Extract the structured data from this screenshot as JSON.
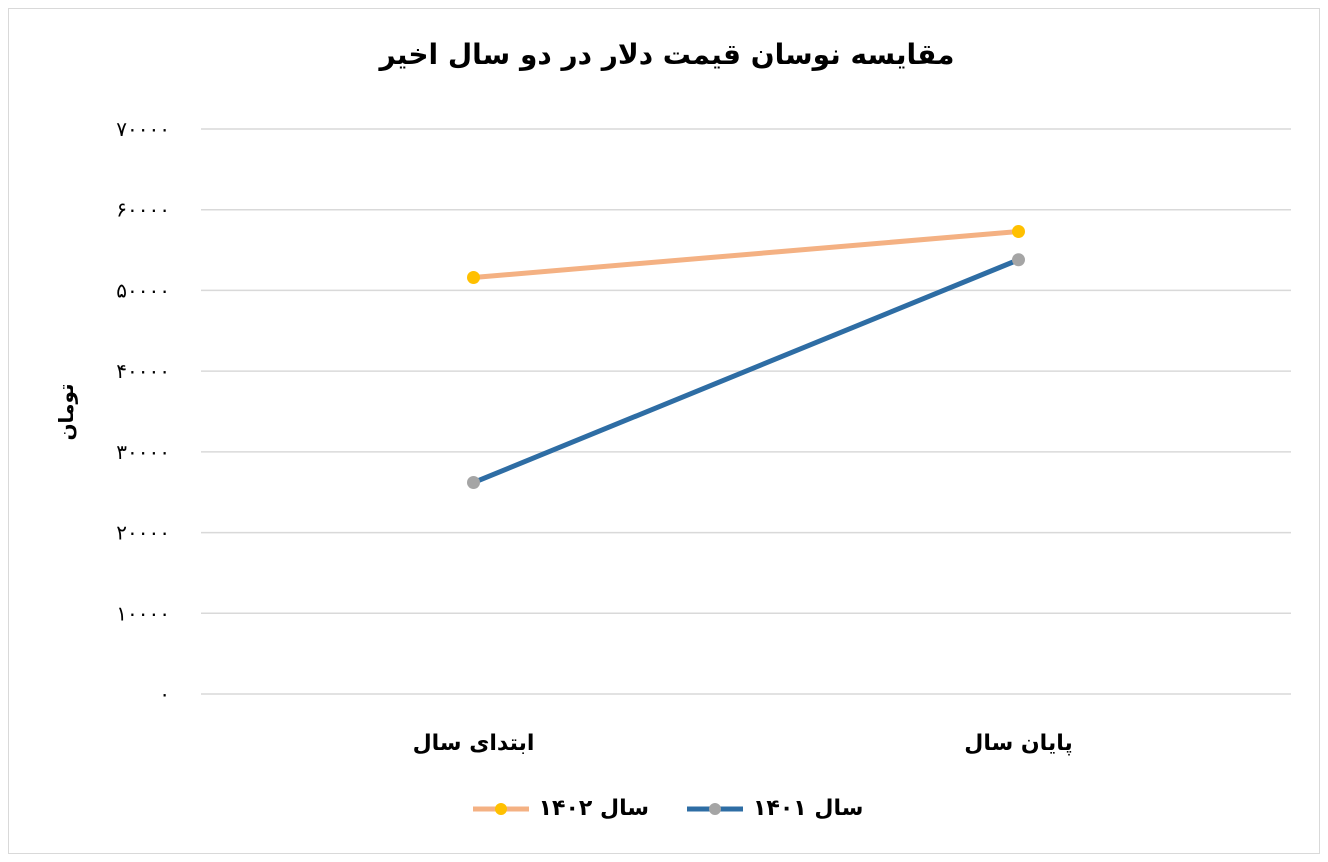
{
  "chart_data": {
    "type": "line",
    "title": "مقایسه نوسان قیمت دلار در دو سال اخیر",
    "xlabel": "",
    "ylabel": "تومان",
    "categories": [
      "ابتدای سال",
      "پایان سال"
    ],
    "series": [
      {
        "name": "سال ۱۴۰۱",
        "values": [
          26200,
          53800
        ],
        "line_color": "#2e6da4",
        "marker_color": "#a5a5a5"
      },
      {
        "name": "سال ۱۴۰۲",
        "values": [
          51600,
          57300
        ],
        "line_color": "#f4b183",
        "marker_color": "#ffc000"
      }
    ],
    "ylim": [
      0,
      70000
    ],
    "yticks": [
      0,
      10000,
      20000,
      30000,
      40000,
      50000,
      60000,
      70000
    ],
    "ytick_labels": [
      "۰",
      "۱۰۰۰۰",
      "۲۰۰۰۰",
      "۳۰۰۰۰",
      "۴۰۰۰۰",
      "۵۰۰۰۰",
      "۶۰۰۰۰",
      "۷۰۰۰۰"
    ],
    "grid": true,
    "legend_position": "bottom"
  }
}
